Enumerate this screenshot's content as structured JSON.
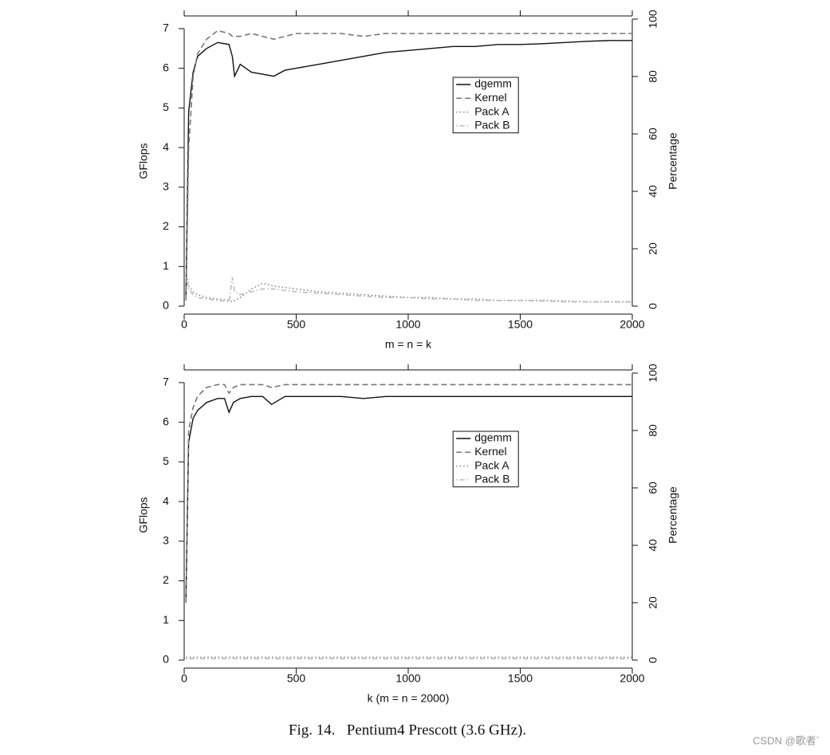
{
  "chart_data": [
    {
      "type": "line",
      "xlabel": "m = n = k",
      "ylabel": "GFlops",
      "y2label": "Percentage",
      "x": [
        8,
        20,
        40,
        60,
        100,
        150,
        200,
        215,
        225,
        250,
        300,
        350,
        400,
        450,
        500,
        600,
        700,
        800,
        900,
        1000,
        1100,
        1200,
        1300,
        1400,
        1500,
        1600,
        1700,
        1800,
        1900,
        2000
      ],
      "xlim": [
        0,
        2000
      ],
      "xticks": [
        0,
        500,
        1000,
        1500,
        2000
      ],
      "ylim": [
        0,
        7.32
      ],
      "yticks": [
        0,
        1,
        2,
        3,
        4,
        5,
        6,
        7
      ],
      "y2lim": [
        0,
        101.1
      ],
      "y2ticks": [
        0,
        20,
        40,
        60,
        80,
        100
      ],
      "legend_position": "upper-middle-right",
      "series": [
        {
          "name": "dgemm",
          "color": "#111111",
          "dash": "solid",
          "values": [
            0.2,
            4.9,
            5.9,
            6.3,
            6.5,
            6.65,
            6.6,
            6.3,
            5.8,
            6.1,
            5.9,
            5.85,
            5.8,
            5.95,
            6.0,
            6.1,
            6.2,
            6.3,
            6.4,
            6.45,
            6.5,
            6.55,
            6.55,
            6.6,
            6.6,
            6.62,
            6.65,
            6.68,
            6.7,
            6.7
          ]
        },
        {
          "name": "Kernel",
          "color": "#777777",
          "dash": "dashed",
          "axis": "y2",
          "values": [
            2,
            55,
            80,
            88,
            93,
            96,
            95,
            94,
            94,
            94,
            95,
            94,
            93,
            94,
            95,
            95,
            95,
            94,
            95,
            95,
            95,
            95,
            95,
            95,
            95,
            95,
            95,
            95,
            95,
            95
          ]
        },
        {
          "name": "Pack A",
          "color": "#888888",
          "dash": "dotted",
          "axis": "y2",
          "values": [
            12,
            7,
            5,
            4,
            3,
            2.5,
            2,
            1.5,
            2,
            3,
            6,
            8,
            7,
            6.5,
            6,
            5,
            4.5,
            4,
            3.5,
            3,
            3,
            2.5,
            2.5,
            2,
            2,
            2,
            1.8,
            1.5,
            1.5,
            1.5
          ]
        },
        {
          "name": "Pack B",
          "color": "#bbbbbb",
          "dash": "dotdash",
          "axis": "y2",
          "values": [
            10,
            6,
            4,
            3,
            2.5,
            2,
            1.5,
            10,
            5,
            4,
            5,
            6,
            6,
            5.5,
            5,
            4.5,
            4,
            3.5,
            3,
            3,
            2.5,
            2.5,
            2,
            2,
            2,
            1.8,
            1.5,
            1.5,
            1.5,
            1.5
          ]
        }
      ]
    },
    {
      "type": "line",
      "xlabel": "k (m = n = 2000)",
      "ylabel": "GFlops",
      "y2label": "Percentage",
      "x": [
        8,
        20,
        40,
        60,
        100,
        150,
        180,
        200,
        220,
        250,
        300,
        350,
        390,
        450,
        500,
        600,
        700,
        800,
        900,
        1000,
        1100,
        1200,
        1300,
        1400,
        1500,
        1600,
        1700,
        1800,
        1900,
        2000
      ],
      "xlim": [
        0,
        2000
      ],
      "xticks": [
        0,
        500,
        1000,
        1500,
        2000
      ],
      "ylim": [
        0,
        7.32
      ],
      "yticks": [
        0,
        1,
        2,
        3,
        4,
        5,
        6,
        7
      ],
      "y2lim": [
        0,
        101.1
      ],
      "y2ticks": [
        0,
        20,
        40,
        60,
        80,
        100
      ],
      "legend_position": "upper-middle-right",
      "series": [
        {
          "name": "dgemm",
          "color": "#111111",
          "dash": "solid",
          "values": [
            1.5,
            5.5,
            6.1,
            6.3,
            6.5,
            6.6,
            6.6,
            6.25,
            6.5,
            6.6,
            6.65,
            6.65,
            6.45,
            6.65,
            6.65,
            6.65,
            6.65,
            6.6,
            6.65,
            6.65,
            6.65,
            6.65,
            6.65,
            6.65,
            6.65,
            6.65,
            6.65,
            6.65,
            6.65,
            6.65
          ]
        },
        {
          "name": "Kernel",
          "color": "#777777",
          "dash": "dashed",
          "axis": "y2",
          "values": [
            20,
            80,
            88,
            92,
            95,
            96,
            96,
            93,
            95,
            96,
            96,
            96,
            95,
            96,
            96,
            96,
            96,
            96,
            96,
            96,
            96,
            96,
            96,
            96,
            96,
            96,
            96,
            96,
            96,
            96
          ]
        },
        {
          "name": "Pack A",
          "color": "#888888",
          "dash": "dotted",
          "axis": "y2",
          "values": [
            1,
            1,
            1,
            1,
            1,
            1,
            1,
            1,
            1,
            1,
            1,
            1,
            1,
            1,
            1,
            1,
            1,
            1,
            1,
            1,
            1,
            1,
            1,
            1,
            1,
            1,
            1,
            1,
            1,
            1
          ]
        },
        {
          "name": "Pack B",
          "color": "#bbbbbb",
          "dash": "dotdash",
          "axis": "y2",
          "values": [
            0.5,
            0.5,
            0.5,
            0.5,
            0.5,
            0.5,
            0.5,
            0.5,
            0.5,
            0.5,
            0.5,
            0.5,
            0.5,
            0.5,
            0.5,
            0.5,
            0.5,
            0.5,
            0.5,
            0.5,
            0.5,
            0.5,
            0.5,
            0.5,
            0.5,
            0.5,
            0.5,
            0.5,
            0.5,
            0.5
          ]
        }
      ]
    }
  ],
  "caption": "Fig. 14.   Pentium4 Prescott (3.6 GHz).",
  "watermark": "CSDN @歌者`"
}
